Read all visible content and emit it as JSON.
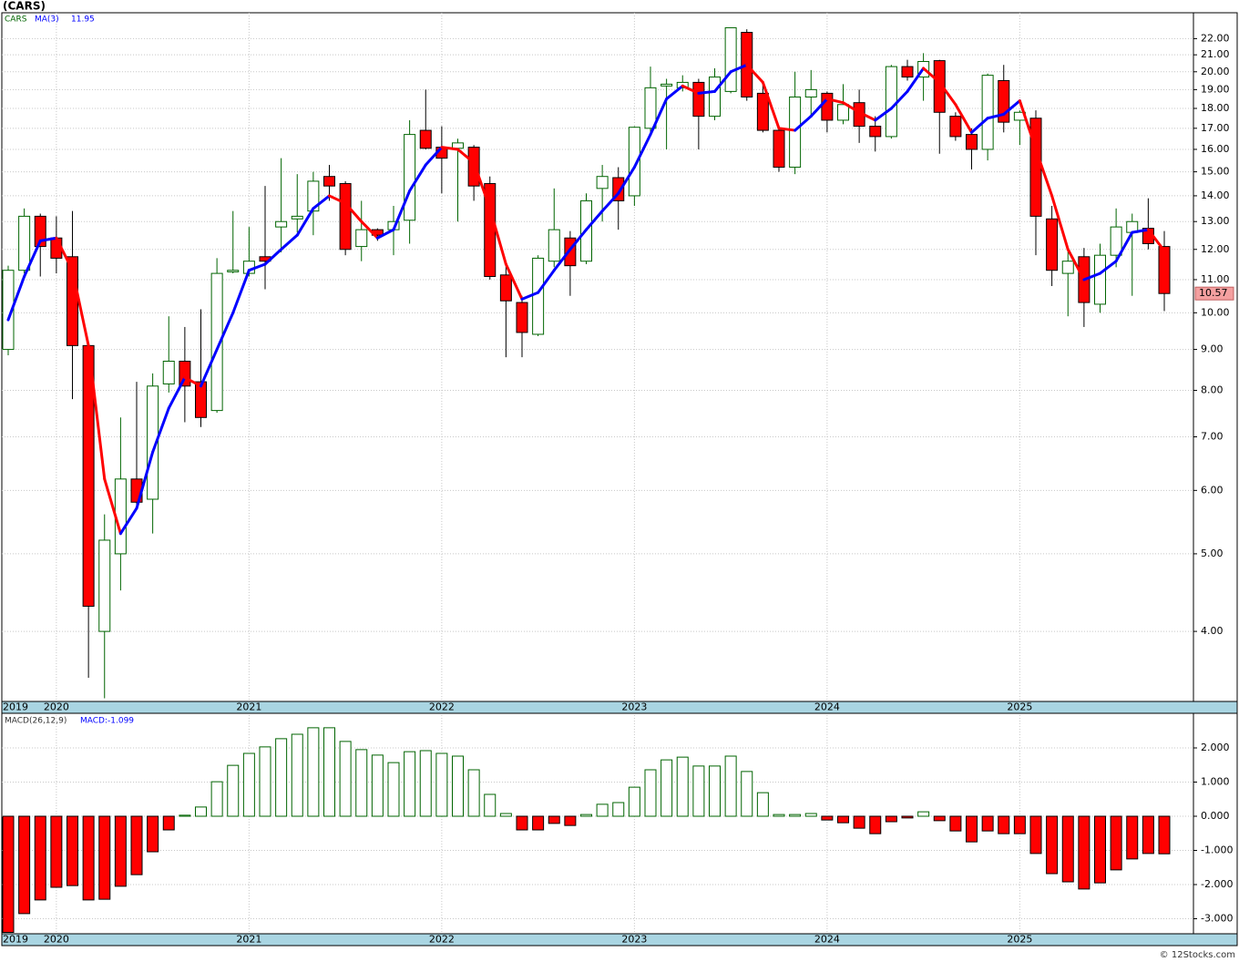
{
  "chart_data": [
    {
      "type": "candlestick",
      "title": "(CARS)",
      "log_scale": true,
      "grid": true,
      "categories": [
        "2019",
        null,
        null,
        "2020",
        null,
        null,
        null,
        null,
        null,
        null,
        null,
        null,
        null,
        null,
        null,
        "2021",
        null,
        null,
        null,
        null,
        null,
        null,
        null,
        null,
        null,
        null,
        null,
        "2022",
        null,
        null,
        null,
        null,
        null,
        null,
        null,
        null,
        null,
        null,
        null,
        "2023",
        null,
        null,
        null,
        null,
        null,
        null,
        null,
        null,
        null,
        null,
        null,
        "2024",
        null,
        null,
        null,
        null,
        null,
        null,
        null,
        null,
        null,
        null,
        null,
        "2025",
        null,
        null,
        null,
        null,
        null,
        null,
        null,
        null,
        null
      ],
      "ylim": [
        3.27,
        23.7
      ],
      "yticks": [
        {
          "value": 4,
          "label": "4.00"
        },
        {
          "value": 5,
          "label": "5.00"
        },
        {
          "value": 6,
          "label": "6.00"
        },
        {
          "value": 7,
          "label": "7.00"
        },
        {
          "value": 8,
          "label": "8.00"
        },
        {
          "value": 9,
          "label": "9.00"
        },
        {
          "value": 10,
          "label": "10.00"
        },
        {
          "value": 11,
          "label": "11.00"
        },
        {
          "value": 12,
          "label": "12.00"
        },
        {
          "value": 13,
          "label": "13.00"
        },
        {
          "value": 14,
          "label": "14.00"
        },
        {
          "value": 15,
          "label": "15.00"
        },
        {
          "value": 16,
          "label": "16.00"
        },
        {
          "value": 17,
          "label": "17.00"
        },
        {
          "value": 18,
          "label": "18.00"
        },
        {
          "value": 19,
          "label": "19.00"
        },
        {
          "value": 20,
          "label": "20.00"
        },
        {
          "value": 21,
          "label": "21.00"
        },
        {
          "value": 22,
          "label": "22.00"
        }
      ],
      "series": [
        {
          "name": "CARS",
          "color": "#006400",
          "down_color": "#ff0000",
          "edge_color": "#000000",
          "last_color": "#f4a0a0",
          "open": [
            9.0,
            11.3,
            13.2,
            12.4,
            11.75,
            9.1,
            4.0,
            5.0,
            6.2,
            5.85,
            8.15,
            8.7,
            8.2,
            7.55,
            11.25,
            11.2,
            11.75,
            12.8,
            13.1,
            13.4,
            14.8,
            14.5,
            12.1,
            12.7,
            12.7,
            13.05,
            16.9,
            16.1,
            16.05,
            16.1,
            14.5,
            11.15,
            10.3,
            9.4,
            11.6,
            12.4,
            11.6,
            14.3,
            14.75,
            14.0,
            17.0,
            19.2,
            19.1,
            19.4,
            17.6,
            18.9,
            22.4,
            18.8,
            16.9,
            15.2,
            18.6,
            18.8,
            17.4,
            18.3,
            17.1,
            16.6,
            20.3,
            19.7,
            20.65,
            17.6,
            16.7,
            16.0,
            19.5,
            17.4,
            17.5,
            13.1,
            11.2,
            11.75,
            10.25,
            11.8,
            12.6,
            12.75,
            12.1
          ],
          "high": [
            11.45,
            13.5,
            13.3,
            13.2,
            13.4,
            9.1,
            5.6,
            7.4,
            8.2,
            8.4,
            9.9,
            9.6,
            10.1,
            11.7,
            13.4,
            12.8,
            14.4,
            15.6,
            14.9,
            15.0,
            15.3,
            14.6,
            13.8,
            12.75,
            13.6,
            17.4,
            19.0,
            17.1,
            16.5,
            16.2,
            14.8,
            11.5,
            10.5,
            11.8,
            14.3,
            12.65,
            14.1,
            15.3,
            15.2,
            17.1,
            20.3,
            19.6,
            19.8,
            19.6,
            20.2,
            22.7,
            22.6,
            19.35,
            17.0,
            20.0,
            20.1,
            18.9,
            19.3,
            19.0,
            17.6,
            20.4,
            20.7,
            21.1,
            20.7,
            17.8,
            17.0,
            19.9,
            20.4,
            17.9,
            17.9,
            13.6,
            12.0,
            12.05,
            12.2,
            13.5,
            13.3,
            13.9,
            12.65
          ],
          "low": [
            8.85,
            11.2,
            11.1,
            11.2,
            7.8,
            3.5,
            3.3,
            4.5,
            5.75,
            5.3,
            7.95,
            7.3,
            7.2,
            7.5,
            11.2,
            11.1,
            10.7,
            11.9,
            12.6,
            12.5,
            13.8,
            11.8,
            11.6,
            12.3,
            11.8,
            12.2,
            16.0,
            14.1,
            13.0,
            13.8,
            11.0,
            8.8,
            8.8,
            9.35,
            11.4,
            10.5,
            11.5,
            13.0,
            12.7,
            13.6,
            16.8,
            16.0,
            18.9,
            16.0,
            17.4,
            18.8,
            18.4,
            16.8,
            15.0,
            14.9,
            17.6,
            16.8,
            17.2,
            16.3,
            15.9,
            16.5,
            19.5,
            18.4,
            15.8,
            16.4,
            15.1,
            15.5,
            16.8,
            16.2,
            11.8,
            10.8,
            9.9,
            9.6,
            10.0,
            11.4,
            10.5,
            12.0,
            10.05
          ],
          "close": [
            11.3,
            13.2,
            12.1,
            11.7,
            9.1,
            4.3,
            5.2,
            6.2,
            5.8,
            8.1,
            8.7,
            8.1,
            7.4,
            11.2,
            11.3,
            11.6,
            11.6,
            13.0,
            13.2,
            14.6,
            14.4,
            12.0,
            12.7,
            12.5,
            13.0,
            16.7,
            16.05,
            15.6,
            16.3,
            14.4,
            11.1,
            10.35,
            9.45,
            11.7,
            12.7,
            11.45,
            13.8,
            14.8,
            13.8,
            17.05,
            19.1,
            19.3,
            19.4,
            17.6,
            19.7,
            22.7,
            18.6,
            16.9,
            15.2,
            18.6,
            19.0,
            17.4,
            18.2,
            17.1,
            16.6,
            20.3,
            19.7,
            20.6,
            17.8,
            16.6,
            16.0,
            19.8,
            17.3,
            17.8,
            13.2,
            11.3,
            11.6,
            10.3,
            11.8,
            12.8,
            13.0,
            12.2,
            10.57
          ]
        },
        {
          "name": "MA(3)",
          "color": "#0000ff",
          "down_color": "#ff0000",
          "values": [
            9.8,
            11.1,
            12.3,
            12.4,
            11.3,
            9.1,
            6.2,
            5.3,
            5.7,
            6.7,
            7.6,
            8.3,
            8.1,
            9.0,
            10.0,
            11.3,
            11.5,
            12.0,
            12.5,
            13.5,
            14.0,
            13.7,
            13.0,
            12.4,
            12.7,
            14.2,
            15.3,
            16.1,
            16.0,
            15.4,
            13.5,
            11.5,
            10.4,
            10.6,
            11.3,
            12.0,
            12.7,
            13.4,
            14.1,
            15.2,
            16.7,
            18.5,
            19.2,
            18.8,
            18.9,
            20.0,
            20.4,
            19.4,
            17.0,
            16.9,
            17.6,
            18.5,
            18.3,
            17.8,
            17.4,
            18.0,
            18.9,
            20.2,
            19.4,
            18.2,
            16.8,
            17.5,
            17.7,
            18.4,
            16.0,
            14.0,
            12.0,
            11.0,
            11.2,
            11.6,
            12.6,
            12.7,
            11.95
          ]
        }
      ]
    },
    {
      "type": "bar",
      "grid": true,
      "categories": [
        "2019",
        null,
        null,
        "2020",
        null,
        null,
        null,
        null,
        null,
        null,
        null,
        null,
        null,
        null,
        null,
        "2021",
        null,
        null,
        null,
        null,
        null,
        null,
        null,
        null,
        null,
        null,
        null,
        "2022",
        null,
        null,
        null,
        null,
        null,
        null,
        null,
        null,
        null,
        null,
        null,
        "2023",
        null,
        null,
        null,
        null,
        null,
        null,
        null,
        null,
        null,
        null,
        null,
        "2024",
        null,
        null,
        null,
        null,
        null,
        null,
        null,
        null,
        null,
        null,
        null,
        "2025",
        null,
        null,
        null,
        null,
        null,
        null,
        null,
        null,
        null
      ],
      "ylim": [
        -3.44,
        2.96
      ],
      "yticks": [
        {
          "value": -3,
          "label": "-3.000"
        },
        {
          "value": -2,
          "label": "-2.000"
        },
        {
          "value": -1,
          "label": "-1.000"
        },
        {
          "value": 0,
          "label": "0.000"
        },
        {
          "value": 1,
          "label": "1.000"
        },
        {
          "value": 2,
          "label": "2.000"
        }
      ],
      "series": [
        {
          "name": "MACD(26,12,9)",
          "color": "#006400",
          "down_color": "#ff0000",
          "edge_color": "#000000",
          "label_color": "#0000ff",
          "current_label": "MACD:-1.099",
          "values": [
            -3.4,
            -2.85,
            -2.45,
            -2.08,
            -2.03,
            -2.45,
            -2.43,
            -2.05,
            -1.71,
            -1.04,
            -0.4,
            0.03,
            0.27,
            1.01,
            1.49,
            1.84,
            2.03,
            2.27,
            2.4,
            2.59,
            2.59,
            2.19,
            1.95,
            1.79,
            1.57,
            1.89,
            1.92,
            1.84,
            1.76,
            1.36,
            0.64,
            0.08,
            -0.4,
            -0.4,
            -0.21,
            -0.27,
            0.05,
            0.35,
            0.4,
            0.85,
            1.36,
            1.65,
            1.73,
            1.47,
            1.47,
            1.76,
            1.31,
            0.69,
            0.05,
            0.05,
            0.08,
            -0.11,
            -0.19,
            -0.35,
            -0.51,
            -0.16,
            -0.05,
            0.13,
            -0.13,
            -0.43,
            -0.75,
            -0.43,
            -0.51,
            -0.51,
            -1.09,
            -1.68,
            -1.92,
            -2.13,
            -1.95,
            -1.57,
            -1.25,
            -1.09,
            -1.099
          ]
        }
      ]
    }
  ],
  "footer": "© 12Stocks.com"
}
